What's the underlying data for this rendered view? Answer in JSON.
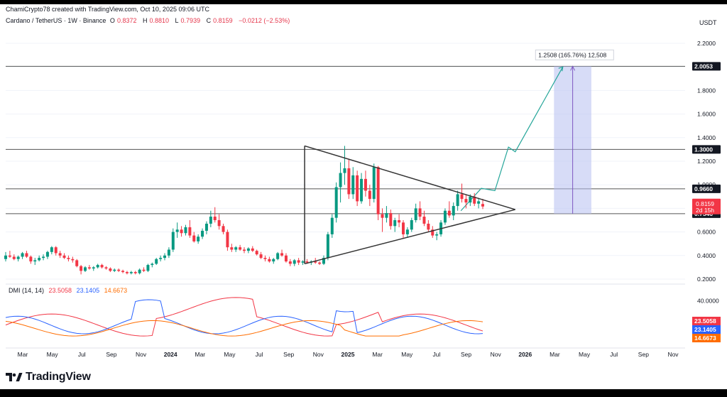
{
  "header": {
    "credit": "ChamiCrypto78 created with TradingView.com, Oct 10, 2025 09:06 UTC",
    "symbol": "Cardano / TetherUS · 1W · Binance",
    "o_label": "O",
    "o_value": "0.8372",
    "h_label": "H",
    "h_value": "0.8810",
    "l_label": "L",
    "l_value": "0.7939",
    "c_label": "C",
    "c_value": "0.8159",
    "change": "−0.0212 (−2.53%)"
  },
  "currency": "USDT",
  "chart_data": {
    "type": "candlestick",
    "price_axis": {
      "ticks": [
        "2.2000",
        "2.0000",
        "1.8000",
        "1.6000",
        "1.4000",
        "1.2000",
        "1.0000",
        "0.8000",
        "0.6000",
        "0.4000",
        "0.2000"
      ],
      "range": [
        0.1,
        2.35
      ]
    },
    "time_axis": {
      "ticks": [
        "Mar",
        "May",
        "Jul",
        "Sep",
        "Nov",
        "2024",
        "Mar",
        "May",
        "Jul",
        "Sep",
        "Nov",
        "2025",
        "Mar",
        "May",
        "Jul",
        "Sep",
        "Nov",
        "2026",
        "Mar",
        "May",
        "Jul",
        "Sep",
        "Nov"
      ]
    },
    "horizontal_levels": [
      {
        "value": 2.0053,
        "label": "2.0053"
      },
      {
        "value": 1.3,
        "label": "1.3000"
      },
      {
        "value": 0.966,
        "label": "0.9660"
      },
      {
        "value": 0.7546,
        "label": "0.7546"
      }
    ],
    "current_price": {
      "value": 0.8159,
      "label": "0.8159",
      "countdown": "2d 15h",
      "color": "#f23645"
    },
    "projection_label": "1.2508 (165.76%) 12,508",
    "triangle": {
      "upper": [
        [
          0.44,
          1.33
        ],
        [
          0.75,
          0.79
        ]
      ],
      "lower": [
        [
          0.44,
          0.33
        ],
        [
          0.75,
          0.79
        ]
      ]
    },
    "projection_path": [
      [
        0.67,
        0.78
      ],
      [
        0.7,
        0.97
      ],
      [
        0.72,
        0.95
      ],
      [
        0.74,
        1.32
      ],
      [
        0.75,
        1.28
      ],
      [
        0.82,
        2.0
      ]
    ],
    "candles": [
      [
        0.37,
        0.43,
        0.35,
        0.4
      ],
      [
        0.4,
        0.44,
        0.38,
        0.39
      ],
      [
        0.39,
        0.41,
        0.36,
        0.37
      ],
      [
        0.37,
        0.4,
        0.35,
        0.39
      ],
      [
        0.39,
        0.43,
        0.37,
        0.42
      ],
      [
        0.42,
        0.44,
        0.38,
        0.39
      ],
      [
        0.39,
        0.4,
        0.33,
        0.35
      ],
      [
        0.35,
        0.38,
        0.32,
        0.36
      ],
      [
        0.36,
        0.4,
        0.35,
        0.38
      ],
      [
        0.38,
        0.41,
        0.36,
        0.39
      ],
      [
        0.39,
        0.44,
        0.37,
        0.43
      ],
      [
        0.43,
        0.48,
        0.41,
        0.47
      ],
      [
        0.47,
        0.48,
        0.4,
        0.42
      ],
      [
        0.42,
        0.44,
        0.38,
        0.4
      ],
      [
        0.4,
        0.42,
        0.37,
        0.38
      ],
      [
        0.38,
        0.4,
        0.35,
        0.37
      ],
      [
        0.37,
        0.39,
        0.34,
        0.36
      ],
      [
        0.36,
        0.37,
        0.3,
        0.31
      ],
      [
        0.31,
        0.32,
        0.24,
        0.27
      ],
      [
        0.27,
        0.31,
        0.26,
        0.3
      ],
      [
        0.3,
        0.32,
        0.28,
        0.29
      ],
      [
        0.29,
        0.31,
        0.27,
        0.3
      ],
      [
        0.3,
        0.33,
        0.29,
        0.32
      ],
      [
        0.32,
        0.33,
        0.29,
        0.3
      ],
      [
        0.3,
        0.31,
        0.28,
        0.29
      ],
      [
        0.29,
        0.3,
        0.26,
        0.27
      ],
      [
        0.27,
        0.29,
        0.26,
        0.28
      ],
      [
        0.28,
        0.29,
        0.26,
        0.27
      ],
      [
        0.27,
        0.28,
        0.25,
        0.26
      ],
      [
        0.26,
        0.27,
        0.24,
        0.25
      ],
      [
        0.25,
        0.27,
        0.24,
        0.26
      ],
      [
        0.26,
        0.27,
        0.24,
        0.25
      ],
      [
        0.25,
        0.29,
        0.24,
        0.28
      ],
      [
        0.28,
        0.3,
        0.26,
        0.27
      ],
      [
        0.27,
        0.33,
        0.26,
        0.32
      ],
      [
        0.32,
        0.34,
        0.3,
        0.33
      ],
      [
        0.33,
        0.38,
        0.32,
        0.37
      ],
      [
        0.37,
        0.4,
        0.35,
        0.38
      ],
      [
        0.38,
        0.42,
        0.36,
        0.4
      ],
      [
        0.4,
        0.47,
        0.38,
        0.45
      ],
      [
        0.45,
        0.63,
        0.43,
        0.6
      ],
      [
        0.6,
        0.68,
        0.55,
        0.62
      ],
      [
        0.62,
        0.65,
        0.56,
        0.59
      ],
      [
        0.59,
        0.66,
        0.57,
        0.64
      ],
      [
        0.64,
        0.7,
        0.55,
        0.57
      ],
      [
        0.57,
        0.6,
        0.51,
        0.52
      ],
      [
        0.52,
        0.58,
        0.5,
        0.56
      ],
      [
        0.56,
        0.63,
        0.54,
        0.61
      ],
      [
        0.61,
        0.69,
        0.58,
        0.67
      ],
      [
        0.67,
        0.78,
        0.64,
        0.73
      ],
      [
        0.73,
        0.81,
        0.68,
        0.7
      ],
      [
        0.7,
        0.75,
        0.62,
        0.65
      ],
      [
        0.65,
        0.67,
        0.58,
        0.6
      ],
      [
        0.6,
        0.62,
        0.44,
        0.47
      ],
      [
        0.47,
        0.5,
        0.43,
        0.45
      ],
      [
        0.45,
        0.48,
        0.43,
        0.47
      ],
      [
        0.47,
        0.49,
        0.44,
        0.45
      ],
      [
        0.45,
        0.47,
        0.42,
        0.44
      ],
      [
        0.44,
        0.47,
        0.42,
        0.46
      ],
      [
        0.46,
        0.48,
        0.43,
        0.44
      ],
      [
        0.44,
        0.45,
        0.4,
        0.41
      ],
      [
        0.41,
        0.43,
        0.37,
        0.38
      ],
      [
        0.38,
        0.4,
        0.35,
        0.37
      ],
      [
        0.37,
        0.39,
        0.34,
        0.35
      ],
      [
        0.35,
        0.38,
        0.33,
        0.37
      ],
      [
        0.37,
        0.43,
        0.36,
        0.42
      ],
      [
        0.42,
        0.45,
        0.39,
        0.4
      ],
      [
        0.4,
        0.42,
        0.34,
        0.35
      ],
      [
        0.35,
        0.37,
        0.31,
        0.33
      ],
      [
        0.33,
        0.37,
        0.31,
        0.36
      ],
      [
        0.36,
        0.38,
        0.32,
        0.34
      ],
      [
        0.34,
        0.36,
        0.32,
        0.35
      ],
      [
        0.35,
        0.37,
        0.33,
        0.34
      ],
      [
        0.34,
        0.36,
        0.32,
        0.35
      ],
      [
        0.35,
        0.38,
        0.33,
        0.34
      ],
      [
        0.34,
        0.35,
        0.32,
        0.33
      ],
      [
        0.33,
        0.4,
        0.32,
        0.38
      ],
      [
        0.38,
        0.6,
        0.36,
        0.58
      ],
      [
        0.58,
        0.75,
        0.55,
        0.72
      ],
      [
        0.72,
        1.02,
        0.68,
        0.98
      ],
      [
        0.98,
        1.19,
        0.85,
        1.1
      ],
      [
        1.1,
        1.33,
        1.0,
        1.14
      ],
      [
        1.14,
        1.22,
        0.88,
        0.92
      ],
      [
        0.92,
        1.15,
        0.88,
        1.08
      ],
      [
        1.08,
        1.12,
        0.82,
        0.86
      ],
      [
        0.86,
        1.1,
        0.84,
        1.05
      ],
      [
        1.05,
        1.12,
        0.9,
        0.95
      ],
      [
        0.95,
        1.0,
        0.82,
        0.88
      ],
      [
        0.88,
        1.18,
        0.85,
        1.15
      ],
      [
        1.15,
        1.16,
        0.7,
        0.75
      ],
      [
        0.75,
        0.8,
        0.6,
        0.72
      ],
      [
        0.72,
        0.82,
        0.68,
        0.76
      ],
      [
        0.76,
        0.79,
        0.62,
        0.65
      ],
      [
        0.65,
        0.72,
        0.6,
        0.7
      ],
      [
        0.7,
        0.75,
        0.64,
        0.68
      ],
      [
        0.68,
        0.7,
        0.55,
        0.58
      ],
      [
        0.58,
        0.64,
        0.55,
        0.62
      ],
      [
        0.62,
        0.72,
        0.6,
        0.7
      ],
      [
        0.7,
        0.84,
        0.68,
        0.8
      ],
      [
        0.8,
        0.86,
        0.7,
        0.73
      ],
      [
        0.73,
        0.78,
        0.65,
        0.67
      ],
      [
        0.67,
        0.7,
        0.6,
        0.62
      ],
      [
        0.62,
        0.65,
        0.55,
        0.57
      ],
      [
        0.57,
        0.6,
        0.53,
        0.58
      ],
      [
        0.58,
        0.7,
        0.56,
        0.68
      ],
      [
        0.68,
        0.8,
        0.66,
        0.78
      ],
      [
        0.78,
        0.86,
        0.72,
        0.74
      ],
      [
        0.74,
        0.85,
        0.7,
        0.82
      ],
      [
        0.82,
        0.95,
        0.78,
        0.92
      ],
      [
        0.92,
        1.01,
        0.85,
        0.88
      ],
      [
        0.88,
        0.92,
        0.8,
        0.85
      ],
      [
        0.85,
        0.92,
        0.82,
        0.9
      ],
      [
        0.9,
        0.93,
        0.82,
        0.84
      ],
      [
        0.84,
        0.89,
        0.8,
        0.86
      ],
      [
        0.8372,
        0.881,
        0.7939,
        0.8159
      ]
    ],
    "dmi": {
      "label": "DMI (14, 14)",
      "values": [
        "23.5058",
        "23.1405",
        "14.6673"
      ],
      "colors": [
        "#f23645",
        "#2962ff",
        "#ff6d00"
      ],
      "axis_tick": "40.0000"
    }
  }
}
